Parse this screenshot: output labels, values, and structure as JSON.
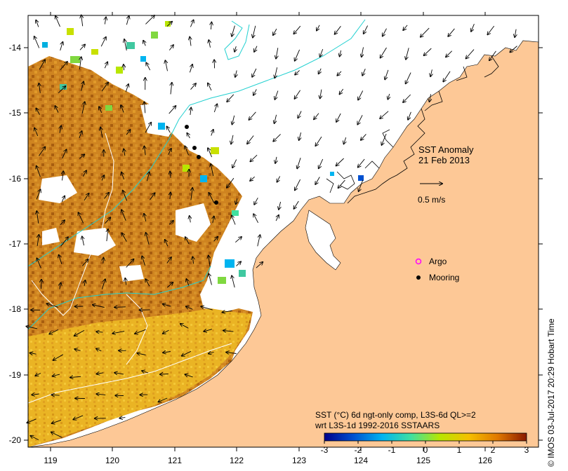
{
  "map": {
    "title_line1": "SST Anomaly",
    "title_line2": "21 Feb 2013",
    "scale_arrow_label": "0.5 m/s",
    "legend": {
      "argo": "Argo",
      "mooring": "Mooring",
      "argo_color": "#ff00ff",
      "mooring_color": "#000000"
    },
    "colorbar": {
      "caption_line1": "SST (°C) 6d ngt-only comp, L3S-6d QL>=2",
      "caption_line2": "wrt L3S-1d 1992-2016 SSTAARS",
      "ticks": [
        "-3",
        "-2",
        "-1",
        "0",
        "1",
        "2",
        "3"
      ],
      "colors": [
        "#00008b",
        "#0050d0",
        "#00b4f0",
        "#40e0a0",
        "#b8e600",
        "#f5c000",
        "#e07800",
        "#8b1a00"
      ]
    },
    "axes": {
      "lon_ticks": [
        "119",
        "120",
        "121",
        "122",
        "123",
        "124",
        "125",
        "126"
      ],
      "lat_ticks": [
        "-14",
        "-15",
        "-16",
        "-17",
        "-18",
        "-19",
        "-20"
      ]
    },
    "credit": "© IMOS 03-Jul-2017 20:29 Hobart Time",
    "colors": {
      "land": "#fdc896",
      "sst_warm": "#d8901c",
      "sst_mid": "#c87818",
      "sst_yellow": "#f0c020",
      "contour_cyan": "#20d0d0",
      "contour_white": "#ffffff"
    }
  }
}
